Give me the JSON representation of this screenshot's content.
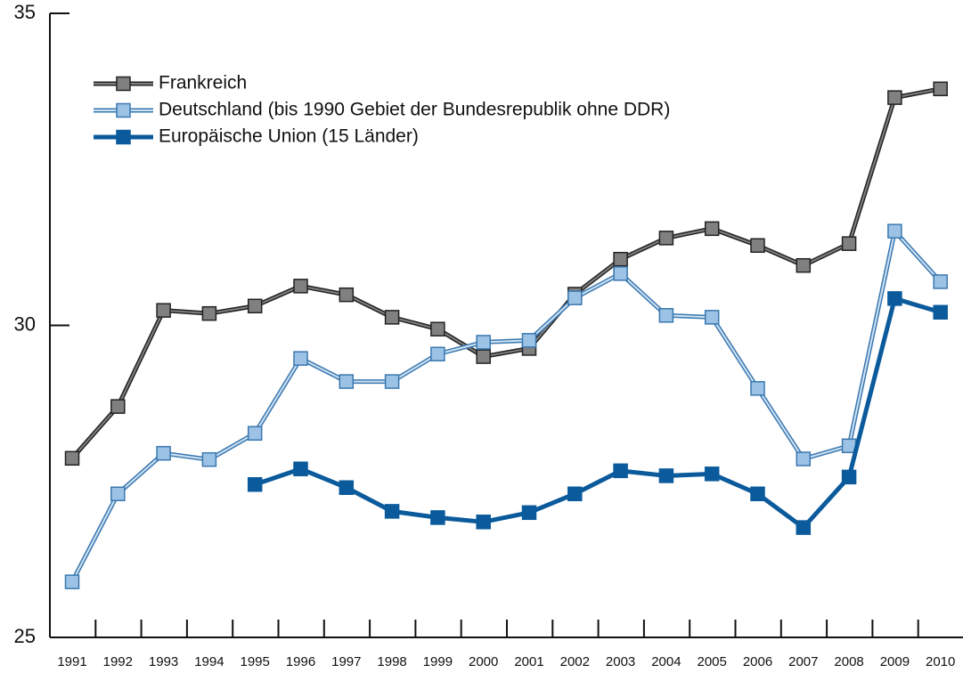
{
  "chart_data": {
    "type": "line",
    "categories": [
      "1991",
      "1992",
      "1993",
      "1994",
      "1995",
      "1996",
      "1997",
      "1998",
      "1999",
      "2000",
      "2001",
      "2002",
      "2003",
      "2004",
      "2005",
      "2006",
      "2007",
      "2008",
      "2009",
      "2010"
    ],
    "ylim": [
      25,
      35
    ],
    "yticks": [
      25,
      30,
      35
    ],
    "grid": false,
    "legend": "upper left",
    "series": [
      {
        "name": "Frankreich",
        "color": "#808080",
        "values": [
          27.87,
          28.7,
          30.24,
          30.19,
          30.31,
          30.63,
          30.49,
          30.13,
          29.94,
          29.5,
          29.63,
          30.5,
          31.06,
          31.4,
          31.55,
          31.28,
          30.96,
          31.31,
          33.65,
          33.79
        ]
      },
      {
        "name": "Deutschland (bis 1990 Gebiet der Bundesrepublik ohne DDR)",
        "color": "#9cc2e5",
        "values": [
          25.89,
          27.3,
          27.95,
          27.85,
          28.27,
          29.47,
          29.1,
          29.1,
          29.54,
          29.73,
          29.76,
          30.44,
          30.83,
          30.16,
          30.13,
          28.99,
          27.86,
          28.07,
          31.51,
          30.7
        ]
      },
      {
        "name": "Europäische Union (15 Länder)",
        "color": "#0a5a9c",
        "values": [
          null,
          null,
          null,
          null,
          27.45,
          27.7,
          27.4,
          27.02,
          26.92,
          26.85,
          27.0,
          27.3,
          27.67,
          27.59,
          27.62,
          27.3,
          26.76,
          27.57,
          30.43,
          30.21
        ]
      }
    ]
  }
}
